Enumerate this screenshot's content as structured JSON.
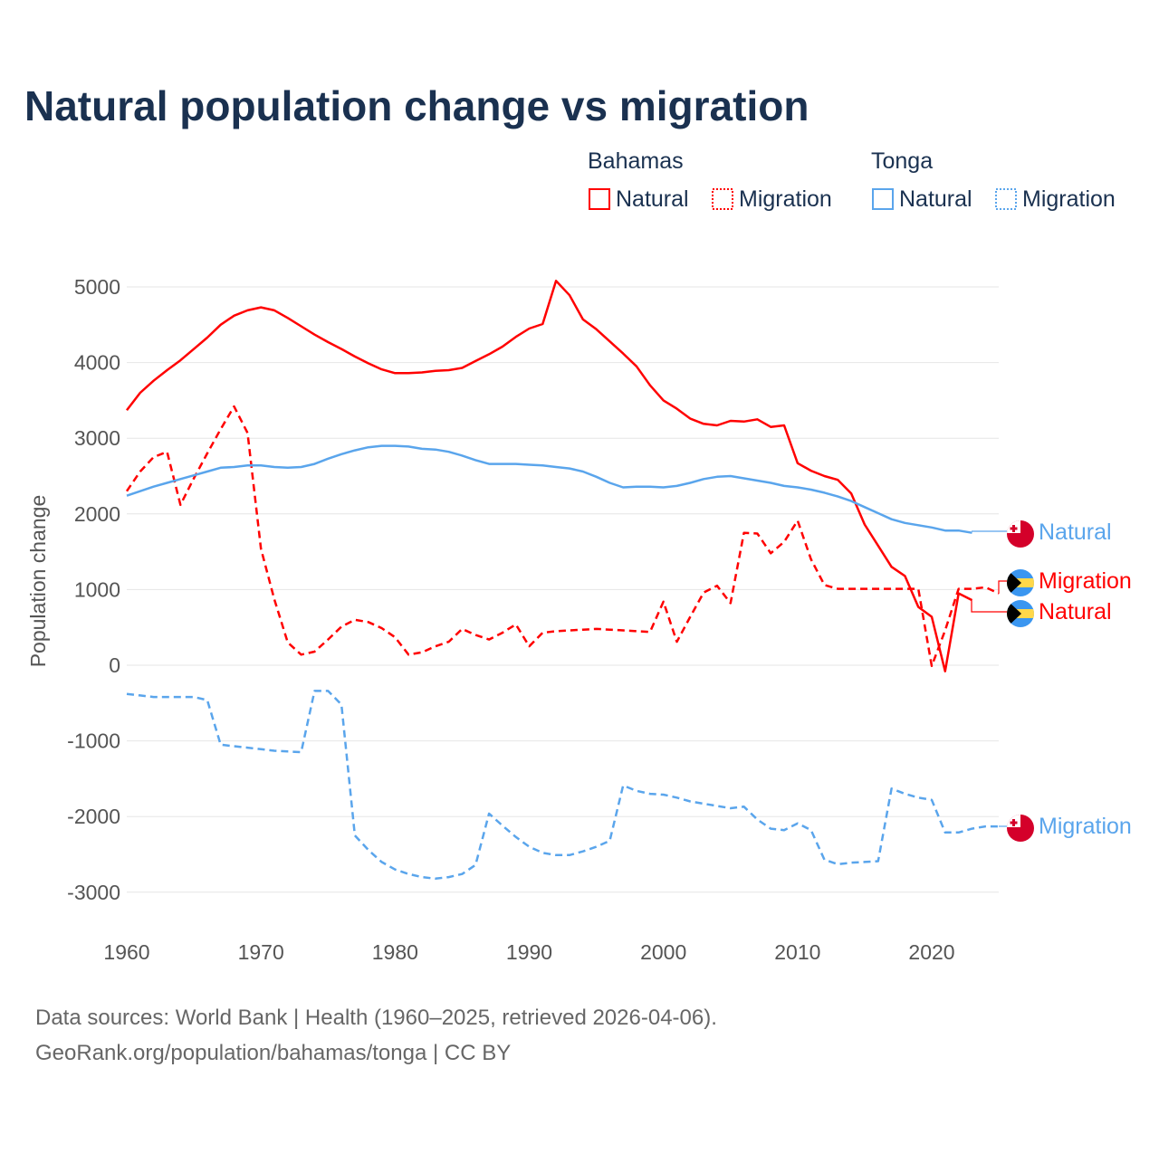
{
  "chart_data": {
    "type": "line",
    "title": "Natural population change vs migration",
    "ylabel": "Population change",
    "xlabel": "",
    "xlim": [
      1960,
      2025
    ],
    "ylim": [
      -3500,
      5500
    ],
    "x_ticks": [
      1960,
      1970,
      1980,
      1990,
      2000,
      2010,
      2020
    ],
    "y_ticks": [
      5000,
      4000,
      3000,
      2000,
      1000,
      0,
      -1000,
      -2000,
      -3000
    ],
    "grid": true,
    "legend": {
      "placement": "top-right",
      "groups": [
        {
          "country": "Bahamas",
          "items": [
            "Natural",
            "Migration"
          ]
        },
        {
          "country": "Tonga",
          "items": [
            "Natural",
            "Migration"
          ]
        }
      ]
    },
    "series": [
      {
        "name": "Natural",
        "country": "Bahamas",
        "color": "#ff0000",
        "style": "solid",
        "start": 1960,
        "values": [
          3370,
          3600,
          3760,
          3900,
          4030,
          4180,
          4330,
          4500,
          4620,
          4690,
          4730,
          4690,
          4590,
          4480,
          4370,
          4270,
          4180,
          4080,
          3990,
          3910,
          3860,
          3860,
          3870,
          3890,
          3900,
          3930,
          4020,
          4110,
          4210,
          4340,
          4450,
          4510,
          5080,
          4890,
          4570,
          4440,
          4280,
          4120,
          3950,
          3700,
          3500,
          3390,
          3260,
          3190,
          3170,
          3230,
          3220,
          3250,
          3150,
          3170,
          2670,
          2570,
          2500,
          2450,
          2270,
          1860,
          1580,
          1300,
          1180,
          770,
          640,
          -80,
          950,
          860
        ]
      },
      {
        "name": "Migration",
        "country": "Bahamas",
        "color": "#ff0000",
        "style": "dashed",
        "start": 1960,
        "values": [
          2300,
          2560,
          2750,
          2820,
          2120,
          2470,
          2800,
          3120,
          3420,
          3070,
          1540,
          870,
          300,
          140,
          180,
          340,
          510,
          600,
          570,
          490,
          370,
          140,
          170,
          250,
          310,
          480,
          400,
          340,
          430,
          540,
          250,
          430,
          450,
          460,
          470,
          480,
          470,
          460,
          450,
          440,
          840,
          310,
          640,
          960,
          1050,
          820,
          1750,
          1740,
          1480,
          1630,
          1910,
          1400,
          1060,
          1010,
          1010,
          1010,
          1010,
          1010,
          1010,
          1010,
          -10,
          460,
          1010,
          1010,
          1030,
          950
        ]
      },
      {
        "name": "Natural",
        "country": "Tonga",
        "color": "#5aa5ec",
        "style": "solid",
        "start": 1960,
        "values": [
          2240,
          2300,
          2360,
          2410,
          2460,
          2510,
          2560,
          2610,
          2620,
          2640,
          2640,
          2620,
          2610,
          2620,
          2660,
          2730,
          2790,
          2840,
          2880,
          2900,
          2900,
          2890,
          2860,
          2850,
          2820,
          2770,
          2710,
          2660,
          2660,
          2660,
          2650,
          2640,
          2620,
          2600,
          2560,
          2490,
          2410,
          2350,
          2360,
          2360,
          2350,
          2370,
          2410,
          2460,
          2490,
          2500,
          2470,
          2440,
          2410,
          2370,
          2350,
          2320,
          2280,
          2230,
          2170,
          2090,
          2010,
          1930,
          1880,
          1850,
          1820,
          1780,
          1780,
          1750
        ]
      },
      {
        "name": "Migration",
        "country": "Tonga",
        "color": "#5aa5ec",
        "style": "dashed",
        "start": 1960,
        "values": [
          -380,
          -400,
          -420,
          -420,
          -420,
          -420,
          -460,
          -1050,
          -1070,
          -1090,
          -1110,
          -1130,
          -1140,
          -1150,
          -340,
          -340,
          -520,
          -2250,
          -2440,
          -2600,
          -2700,
          -2760,
          -2800,
          -2820,
          -2800,
          -2760,
          -2640,
          -1960,
          -2120,
          -2270,
          -2400,
          -2480,
          -2510,
          -2510,
          -2460,
          -2400,
          -2320,
          -1590,
          -1660,
          -1700,
          -1710,
          -1750,
          -1800,
          -1830,
          -1860,
          -1890,
          -1870,
          -2040,
          -2160,
          -2180,
          -2090,
          -2180,
          -2570,
          -2630,
          -2610,
          -2600,
          -2590,
          -1630,
          -1700,
          -1750,
          -1780,
          -2210,
          -2210,
          -2160,
          -2130,
          -2130
        ]
      }
    ],
    "end_labels": [
      "Natural",
      "Migration",
      "Natural",
      "Migration"
    ]
  },
  "footer": {
    "line1": "Data sources: World Bank | Health (1960–2025, retrieved 2026-04-06).",
    "line2": "GeoRank.org/population/bahamas/tonga | CC BY"
  },
  "colors": {
    "title": "#1a3150",
    "bahamas": "#ff0000",
    "tonga": "#5aa5ec",
    "axis_text": "#555555",
    "grid": "#e6e6e6"
  }
}
